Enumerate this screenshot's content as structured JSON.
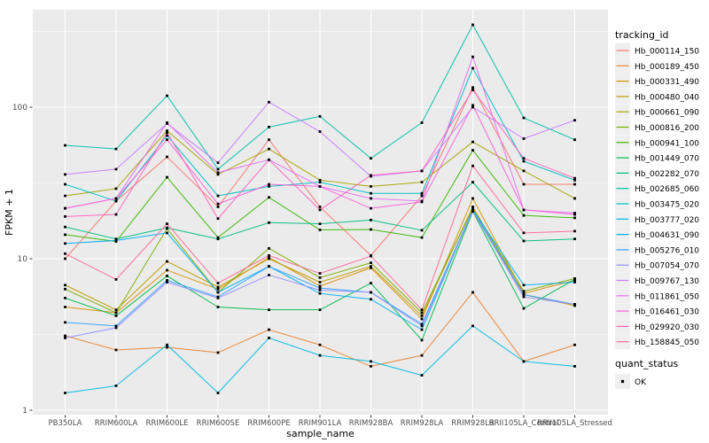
{
  "chart_data": {
    "type": "line",
    "title": "",
    "xlabel": "sample_name",
    "ylabel": "FPKM + 1",
    "x_categories": [
      "PB350LA",
      "RRIM600LA",
      "RRIM600LE",
      "RRIM600SE",
      "RRIM600PE",
      "RRIM901LA",
      "RRIM928BA",
      "RRIM928LA",
      "RRIM928LB",
      "RRII105LA_Control",
      "RRII105LA_Stressed"
    ],
    "y_scale": "log10",
    "y_ticks": [
      "1",
      "10",
      "100"
    ],
    "y_tick_values": [
      1,
      10,
      100
    ],
    "y_minor_values": [
      3.1623,
      31.623,
      316.23
    ],
    "ylim": [
      1,
      450
    ],
    "legend_title": "tracking_id",
    "series": [
      {
        "name": "Hb_000114_150",
        "color": "#F8766D",
        "values": [
          10,
          24,
          47,
          22,
          61,
          22,
          10.5,
          26,
          135,
          31,
          31
        ]
      },
      {
        "name": "Hb_000189_450",
        "color": "#EA8331",
        "values": [
          3.1,
          2.5,
          2.6,
          2.4,
          3.4,
          2.7,
          1.95,
          2.3,
          6,
          2.1,
          2.7
        ]
      },
      {
        "name": "Hb_000331_490",
        "color": "#D89000",
        "values": [
          4.8,
          4.4,
          8.4,
          6.3,
          10.2,
          6.6,
          8.7,
          4,
          25,
          5.9,
          7.2
        ]
      },
      {
        "name": "Hb_000480_040",
        "color": "#C09B00",
        "values": [
          6.7,
          4.6,
          9.6,
          6.5,
          10,
          7,
          8.9,
          4.2,
          22,
          5.8,
          4.9
        ]
      },
      {
        "name": "Hb_000661_090",
        "color": "#A3A500",
        "values": [
          26,
          29,
          70,
          36,
          53,
          33,
          30,
          32,
          59,
          38,
          25
        ]
      },
      {
        "name": "Hb_000816_200",
        "color": "#7CAE00",
        "values": [
          6.3,
          4.4,
          15.8,
          6,
          11.7,
          7.5,
          9.4,
          4.4,
          21.5,
          6.1,
          7.4
        ]
      },
      {
        "name": "Hb_000941_100",
        "color": "#39B600",
        "values": [
          14.4,
          13,
          34.5,
          13.8,
          25.4,
          15.5,
          15.6,
          13.8,
          52,
          19.3,
          18.6
        ]
      },
      {
        "name": "Hb_001449_070",
        "color": "#00BB4E",
        "values": [
          5.5,
          4.2,
          7.7,
          4.8,
          4.6,
          4.6,
          6.9,
          2.9,
          20.5,
          4.7,
          7.3
        ]
      },
      {
        "name": "Hb_002282_070",
        "color": "#00BF7D",
        "values": [
          16.2,
          13.5,
          16,
          13.5,
          17.3,
          17,
          18,
          15.4,
          32,
          13.1,
          13.5
        ]
      },
      {
        "name": "Hb_002685_060",
        "color": "#00C1A3",
        "values": [
          56,
          53,
          119,
          39,
          74,
          87,
          46,
          79,
          350,
          85,
          61
        ]
      },
      {
        "name": "Hb_003475_020",
        "color": "#00BFC4",
        "values": [
          31,
          24,
          65,
          26,
          30,
          32,
          27,
          27,
          181,
          44,
          33
        ]
      },
      {
        "name": "Hb_003777_020",
        "color": "#00BAE0",
        "values": [
          1.3,
          1.45,
          2.7,
          1.3,
          3,
          2.3,
          2.1,
          1.7,
          3.6,
          2.1,
          1.95
        ]
      },
      {
        "name": "Hb_004631_090",
        "color": "#00B0F6",
        "values": [
          12.6,
          13.2,
          14.8,
          6,
          8.9,
          5.9,
          5.4,
          3.4,
          21,
          6.7,
          7
        ]
      },
      {
        "name": "Hb_005276_010",
        "color": "#35A2FF",
        "values": [
          3.8,
          3.6,
          7.2,
          5.6,
          8.9,
          6.4,
          6,
          3.7,
          21,
          5.8,
          5
        ]
      },
      {
        "name": "Hb_007054_070",
        "color": "#9590FF",
        "values": [
          3,
          3.5,
          7,
          5.5,
          7.8,
          6.2,
          6,
          3.6,
          20.7,
          5.6,
          5
        ]
      },
      {
        "name": "Hb_009767_130",
        "color": "#C77CFF",
        "values": [
          36,
          39,
          78,
          43,
          108,
          69,
          35,
          38,
          100,
          62,
          82
        ]
      },
      {
        "name": "Hb_011861_050",
        "color": "#E76BF3",
        "values": [
          21.5,
          25,
          79,
          37,
          45,
          30,
          25,
          24,
          215,
          21,
          20
        ]
      },
      {
        "name": "Hb_016461_030",
        "color": "#FA62DB",
        "values": [
          21.5,
          25,
          61,
          23,
          31,
          30,
          21.5,
          23.7,
          103,
          21,
          19.6
        ]
      },
      {
        "name": "Hb_029920_030",
        "color": "#FF62BC",
        "values": [
          19,
          19.6,
          68,
          18.4,
          45,
          21,
          35.5,
          38,
          130,
          46,
          34
        ]
      },
      {
        "name": "Hb_158845_050",
        "color": "#FF6A98",
        "values": [
          10.8,
          7.3,
          17,
          6.9,
          10.5,
          8,
          10.4,
          4.6,
          41,
          14.8,
          15.2
        ]
      }
    ],
    "quant_status_legend": {
      "title": "quant_status",
      "items": [
        "OK"
      ],
      "marker_color": "#000000"
    }
  },
  "colors": {
    "panel_bg": "#EBEBEB",
    "grid": "#FFFFFF",
    "legend_key_bg": "#EFEFEF",
    "tick_text": "#4D4D4D",
    "title_text": "#000000",
    "point": "#000000"
  }
}
